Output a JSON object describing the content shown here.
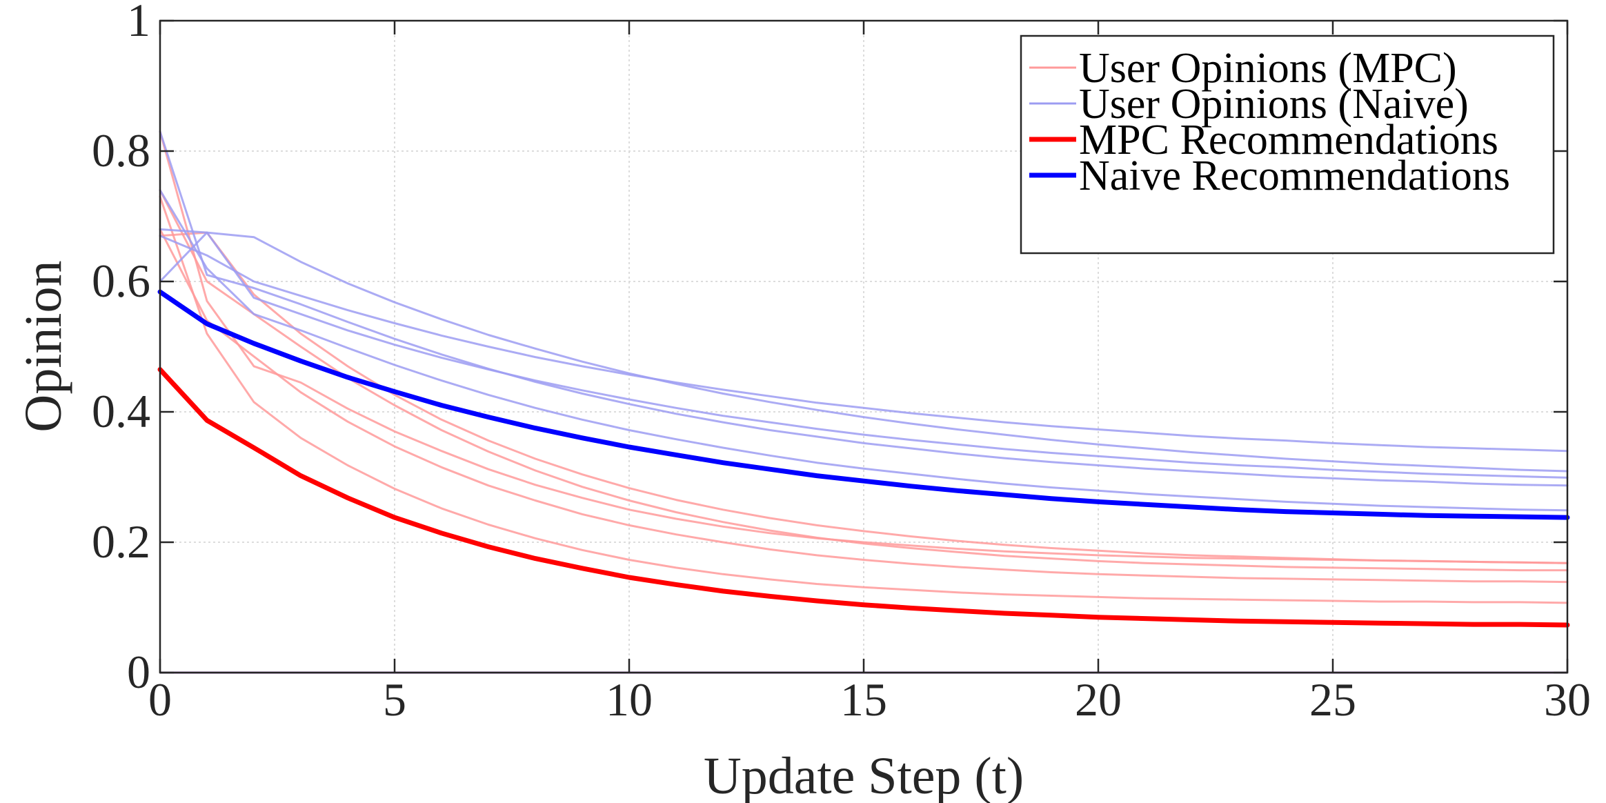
{
  "chart_data": {
    "type": "line",
    "title": "",
    "xlabel": "Update Step (t)",
    "ylabel": "Opinion",
    "xlim": [
      0,
      30
    ],
    "ylim": [
      0,
      1
    ],
    "xticks": [
      0,
      5,
      10,
      15,
      20,
      25,
      30
    ],
    "yticks": [
      0,
      0.2,
      0.4,
      0.6,
      0.8,
      1
    ],
    "ytick_labels": [
      "0",
      "0.2",
      "0.4",
      "0.6",
      "0.8",
      "1"
    ],
    "grid": true,
    "legend_position": "top-right",
    "x": [
      0,
      1,
      2,
      3,
      4,
      5,
      6,
      7,
      8,
      9,
      10,
      11,
      12,
      13,
      14,
      15,
      16,
      17,
      18,
      19,
      20,
      21,
      22,
      23,
      24,
      25,
      26,
      27,
      28,
      29,
      30
    ],
    "legend": [
      {
        "label": "User Opinions (MPC)",
        "color": "#ff9a9a",
        "style": "thin"
      },
      {
        "label": "User Opinions (Naive)",
        "color": "#9c9cf2",
        "style": "thin"
      },
      {
        "label": "MPC Recommendations",
        "color": "#ff0000",
        "style": "thick"
      },
      {
        "label": "Naive Recommendations",
        "color": "#0000ff",
        "style": "thick"
      }
    ],
    "series": [
      {
        "group": "mpc_users",
        "color": "#ff9a9a",
        "values": [
          0.83,
          0.57,
          0.47,
          0.445,
          0.405,
          0.37,
          0.34,
          0.312,
          0.288,
          0.268,
          0.25,
          0.236,
          0.224,
          0.214,
          0.206,
          0.2,
          0.195,
          0.19,
          0.186,
          0.183,
          0.18,
          0.178,
          0.176,
          0.175,
          0.174,
          0.173,
          0.172,
          0.171,
          0.17,
          0.169,
          0.168
        ]
      },
      {
        "group": "mpc_users",
        "color": "#ff9a9a",
        "values": [
          0.73,
          0.52,
          0.415,
          0.36,
          0.318,
          0.282,
          0.252,
          0.227,
          0.206,
          0.188,
          0.173,
          0.161,
          0.151,
          0.143,
          0.136,
          0.131,
          0.127,
          0.123,
          0.12,
          0.118,
          0.116,
          0.114,
          0.113,
          0.112,
          0.111,
          0.11,
          0.109,
          0.109,
          0.108,
          0.108,
          0.107
        ]
      },
      {
        "group": "mpc_users",
        "color": "#ff9a9a",
        "values": [
          0.68,
          0.54,
          0.485,
          0.43,
          0.385,
          0.347,
          0.315,
          0.287,
          0.264,
          0.243,
          0.226,
          0.212,
          0.2,
          0.189,
          0.18,
          0.173,
          0.167,
          0.162,
          0.158,
          0.154,
          0.151,
          0.149,
          0.147,
          0.145,
          0.144,
          0.143,
          0.142,
          0.141,
          0.14,
          0.14,
          0.139
        ]
      },
      {
        "group": "mpc_users",
        "color": "#ff9a9a",
        "values": [
          0.74,
          0.6,
          0.55,
          0.5,
          0.452,
          0.41,
          0.372,
          0.339,
          0.31,
          0.285,
          0.264,
          0.246,
          0.231,
          0.218,
          0.207,
          0.198,
          0.191,
          0.185,
          0.179,
          0.175,
          0.171,
          0.168,
          0.166,
          0.164,
          0.162,
          0.161,
          0.16,
          0.159,
          0.158,
          0.157,
          0.157
        ]
      },
      {
        "group": "mpc_users",
        "color": "#ff9a9a",
        "values": [
          0.67,
          0.675,
          0.58,
          0.52,
          0.47,
          0.426,
          0.388,
          0.356,
          0.328,
          0.304,
          0.283,
          0.265,
          0.25,
          0.237,
          0.226,
          0.217,
          0.209,
          0.202,
          0.196,
          0.191,
          0.187,
          0.183,
          0.18,
          0.178,
          0.176,
          0.174,
          0.172,
          0.171,
          0.17,
          0.169,
          0.168
        ]
      },
      {
        "group": "naive_users",
        "color": "#9c9cf2",
        "values": [
          0.83,
          0.61,
          0.59,
          0.565,
          0.538,
          0.512,
          0.488,
          0.466,
          0.446,
          0.428,
          0.412,
          0.397,
          0.384,
          0.372,
          0.362,
          0.352,
          0.344,
          0.336,
          0.329,
          0.323,
          0.318,
          0.313,
          0.309,
          0.305,
          0.301,
          0.298,
          0.295,
          0.293,
          0.29,
          0.288,
          0.287
        ]
      },
      {
        "group": "naive_users",
        "color": "#9c9cf2",
        "values": [
          0.74,
          0.62,
          0.55,
          0.525,
          0.498,
          0.472,
          0.448,
          0.426,
          0.406,
          0.388,
          0.372,
          0.358,
          0.345,
          0.333,
          0.322,
          0.313,
          0.305,
          0.297,
          0.29,
          0.284,
          0.279,
          0.274,
          0.27,
          0.266,
          0.262,
          0.259,
          0.256,
          0.254,
          0.252,
          0.25,
          0.249
        ]
      },
      {
        "group": "naive_users",
        "color": "#9c9cf2",
        "values": [
          0.68,
          0.675,
          0.668,
          0.63,
          0.597,
          0.568,
          0.542,
          0.518,
          0.497,
          0.477,
          0.459,
          0.443,
          0.428,
          0.415,
          0.403,
          0.392,
          0.382,
          0.373,
          0.365,
          0.357,
          0.35,
          0.344,
          0.338,
          0.333,
          0.328,
          0.324,
          0.32,
          0.317,
          0.314,
          0.311,
          0.309
        ]
      },
      {
        "group": "naive_users",
        "color": "#9c9cf2",
        "values": [
          0.67,
          0.64,
          0.6,
          0.578,
          0.556,
          0.536,
          0.517,
          0.5,
          0.484,
          0.47,
          0.457,
          0.445,
          0.434,
          0.424,
          0.414,
          0.406,
          0.398,
          0.391,
          0.384,
          0.378,
          0.373,
          0.368,
          0.363,
          0.359,
          0.356,
          0.352,
          0.349,
          0.346,
          0.344,
          0.342,
          0.34
        ]
      },
      {
        "group": "naive_users",
        "color": "#9c9cf2",
        "values": [
          0.6,
          0.675,
          0.575,
          0.55,
          0.525,
          0.503,
          0.483,
          0.465,
          0.448,
          0.433,
          0.419,
          0.406,
          0.394,
          0.384,
          0.374,
          0.365,
          0.357,
          0.35,
          0.343,
          0.337,
          0.332,
          0.327,
          0.322,
          0.318,
          0.315,
          0.311,
          0.308,
          0.305,
          0.303,
          0.301,
          0.299
        ]
      },
      {
        "group": "mpc_rec",
        "name": "MPC Recommendations",
        "color": "#ff0000",
        "values": [
          0.465,
          0.387,
          0.345,
          0.302,
          0.268,
          0.238,
          0.214,
          0.193,
          0.175,
          0.16,
          0.146,
          0.135,
          0.125,
          0.117,
          0.11,
          0.104,
          0.099,
          0.095,
          0.091,
          0.088,
          0.085,
          0.083,
          0.081,
          0.079,
          0.078,
          0.077,
          0.076,
          0.075,
          0.074,
          0.074,
          0.073
        ]
      },
      {
        "group": "naive_rec",
        "name": "Naive Recommendations",
        "color": "#0000ff",
        "values": [
          0.584,
          0.535,
          0.505,
          0.478,
          0.453,
          0.431,
          0.41,
          0.392,
          0.375,
          0.36,
          0.346,
          0.334,
          0.322,
          0.312,
          0.302,
          0.294,
          0.286,
          0.279,
          0.273,
          0.267,
          0.262,
          0.258,
          0.254,
          0.25,
          0.247,
          0.245,
          0.243,
          0.241,
          0.24,
          0.239,
          0.238
        ]
      }
    ]
  }
}
